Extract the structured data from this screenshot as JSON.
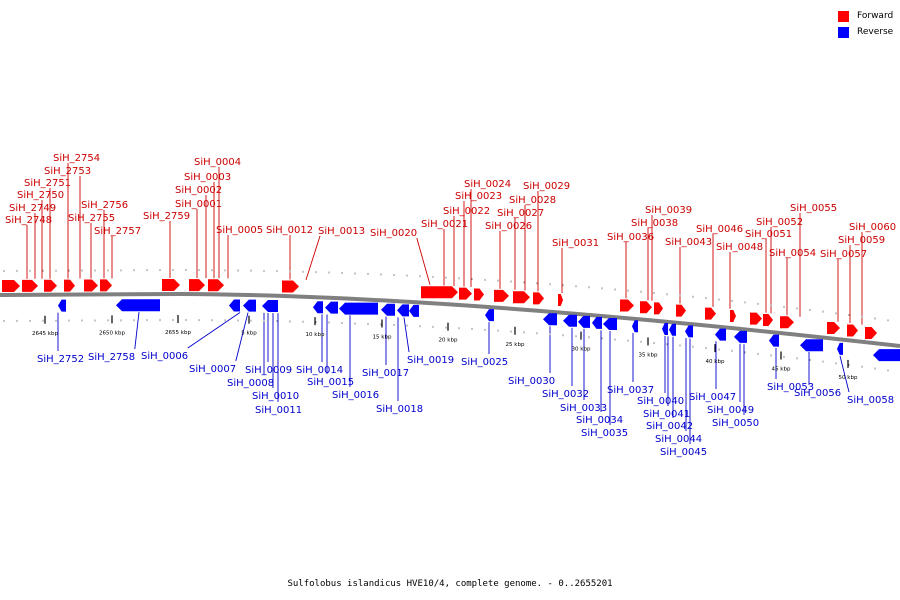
{
  "legend": {
    "forward_label": "Forward",
    "reverse_label": "Reverse",
    "forward_color": "#ff0000",
    "reverse_color": "#0000ff"
  },
  "caption": "Sulfolobus islandicus HVE10/4, complete genome. - 0..2655201",
  "colors": {
    "forward_label": "#cc0000",
    "reverse_label": "#0000cc",
    "backbone": "#808080"
  },
  "scale_labels": [
    "2645 kbp",
    "2650 kbp",
    "2655 kbp",
    "5 kbp",
    "10 kbp",
    "15 kbp",
    "20 kbp",
    "25 kbp",
    "30 kbp",
    "35 kbp",
    "40 kbp",
    "45 kbp",
    "50 kbp"
  ],
  "forward_genes": [
    "SiH_2748",
    "SiH_2749",
    "SiH_2750",
    "SiH_2751",
    "SiH_2753",
    "SiH_2754",
    "SiH_2755",
    "SiH_2756",
    "SiH_2757",
    "SiH_2759",
    "SiH_0001",
    "SiH_0002",
    "SiH_0003",
    "SiH_0004",
    "SiH_0005",
    "SiH_0012",
    "SiH_0013",
    "SiH_0020",
    "SiH_0021",
    "SiH_0022",
    "SiH_0023",
    "SiH_0024",
    "SiH_0026",
    "SiH_0027",
    "SiH_0028",
    "SiH_0029",
    "SiH_0031",
    "SiH_0036",
    "SiH_0038",
    "SiH_0039",
    "SiH_0043",
    "SiH_0046",
    "SiH_0048",
    "SiH_0051",
    "SiH_0052",
    "SiH_0054",
    "SiH_0055",
    "SiH_0057",
    "SiH_0059",
    "SiH_0060"
  ],
  "reverse_genes": [
    "SiH_2752",
    "SiH_2758",
    "SiH_0006",
    "SiH_0007",
    "SiH_0008",
    "SiH_0009",
    "SiH_0010",
    "SiH_0011",
    "SiH_0014",
    "SiH_0015",
    "SiH_0016",
    "SiH_0017",
    "SiH_0018",
    "SiH_0019",
    "SiH_0025",
    "SiH_0030",
    "SiH_0032",
    "SiH_0033",
    "SiH_0034",
    "SiH_0035",
    "SiH_0037",
    "SiH_0040",
    "SiH_0041",
    "SiH_0042",
    "SiH_0044",
    "SiH_0045",
    "SiH_0047",
    "SiH_0049",
    "SiH_0050",
    "SiH_0053",
    "SiH_0056",
    "SiH_0058"
  ]
}
